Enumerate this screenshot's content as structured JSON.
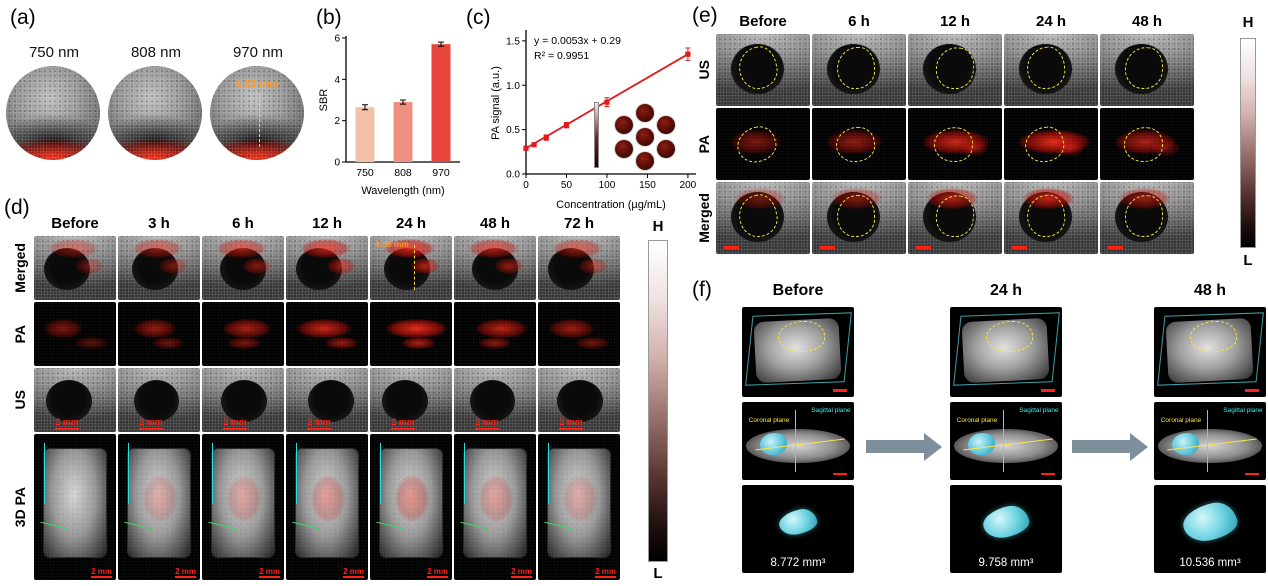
{
  "panels": {
    "a": {
      "label": "(a)",
      "images": [
        {
          "caption": "750 nm"
        },
        {
          "caption": "808 nm"
        },
        {
          "caption": "970 nm",
          "measurement": "4.92 mm"
        }
      ]
    },
    "b": {
      "label": "(b)"
    },
    "c": {
      "label": "(c)"
    },
    "d": {
      "label": "(d)",
      "columns": [
        "Before",
        "3 h",
        "6 h",
        "12 h",
        "24 h",
        "48 h",
        "72 h"
      ],
      "rows": [
        "Merged",
        "PA",
        "US",
        "3D PA"
      ],
      "measurement": "4.38 mm",
      "scale_bar": "2 mm",
      "colorbar": {
        "high": "H",
        "low": "L"
      }
    },
    "e": {
      "label": "(e)",
      "columns": [
        "Before",
        "6 h",
        "12 h",
        "24 h",
        "48 h"
      ],
      "rows": [
        "US",
        "PA",
        "Merged"
      ],
      "colorbar": {
        "high": "H",
        "low": "L"
      }
    },
    "f": {
      "label": "(f)",
      "columns": [
        "Before",
        "24 h",
        "48 h"
      ],
      "volumes": [
        "8.772 mm³",
        "9.758 mm³",
        "10.536 mm³"
      ],
      "plane_labels": [
        "Sagittal plane",
        "Coronal plane"
      ]
    }
  },
  "chart_data": [
    {
      "type": "bar",
      "panel": "b",
      "categories": [
        "750",
        "808",
        "970"
      ],
      "values": [
        2.65,
        2.9,
        5.7
      ],
      "errors": [
        0.12,
        0.1,
        0.1
      ],
      "bar_colors": [
        "#f2c0a6",
        "#ee8f80",
        "#e8453c"
      ],
      "xlabel": "Wavelength (nm)",
      "ylabel": "SBR",
      "ylim": [
        0,
        6
      ],
      "yticks": [
        0,
        2,
        4,
        6
      ],
      "ytick_labels": [
        "0",
        "2",
        "4",
        "6"
      ],
      "grid": false,
      "legend": "none"
    },
    {
      "type": "scatter",
      "panel": "c",
      "x": [
        0,
        10,
        25,
        50,
        100,
        200
      ],
      "y": [
        0.29,
        0.33,
        0.41,
        0.55,
        0.81,
        1.35
      ],
      "errors": [
        0.02,
        0.02,
        0.03,
        0.03,
        0.05,
        0.07
      ],
      "fit": {
        "slope": 0.0053,
        "intercept": 0.29,
        "label": "y = 0.0053x + 0.29",
        "r2": "R² = 0.9951"
      },
      "color": "#e01b1c",
      "xlabel": "Concentration (µg/mL)",
      "ylabel": "PA signal (a.u.)",
      "xlim": [
        0,
        210
      ],
      "ylim": [
        0,
        1.6
      ],
      "xticks": [
        0,
        50,
        100,
        150,
        200
      ],
      "xtick_labels": [
        "0",
        "50",
        "100",
        "150",
        "200"
      ],
      "yticks": [
        0,
        0.5,
        1.0,
        1.5
      ],
      "ytick_labels": [
        "0.0",
        "0.5",
        "1.0",
        "1.5"
      ],
      "grid": false,
      "legend": "none"
    }
  ]
}
